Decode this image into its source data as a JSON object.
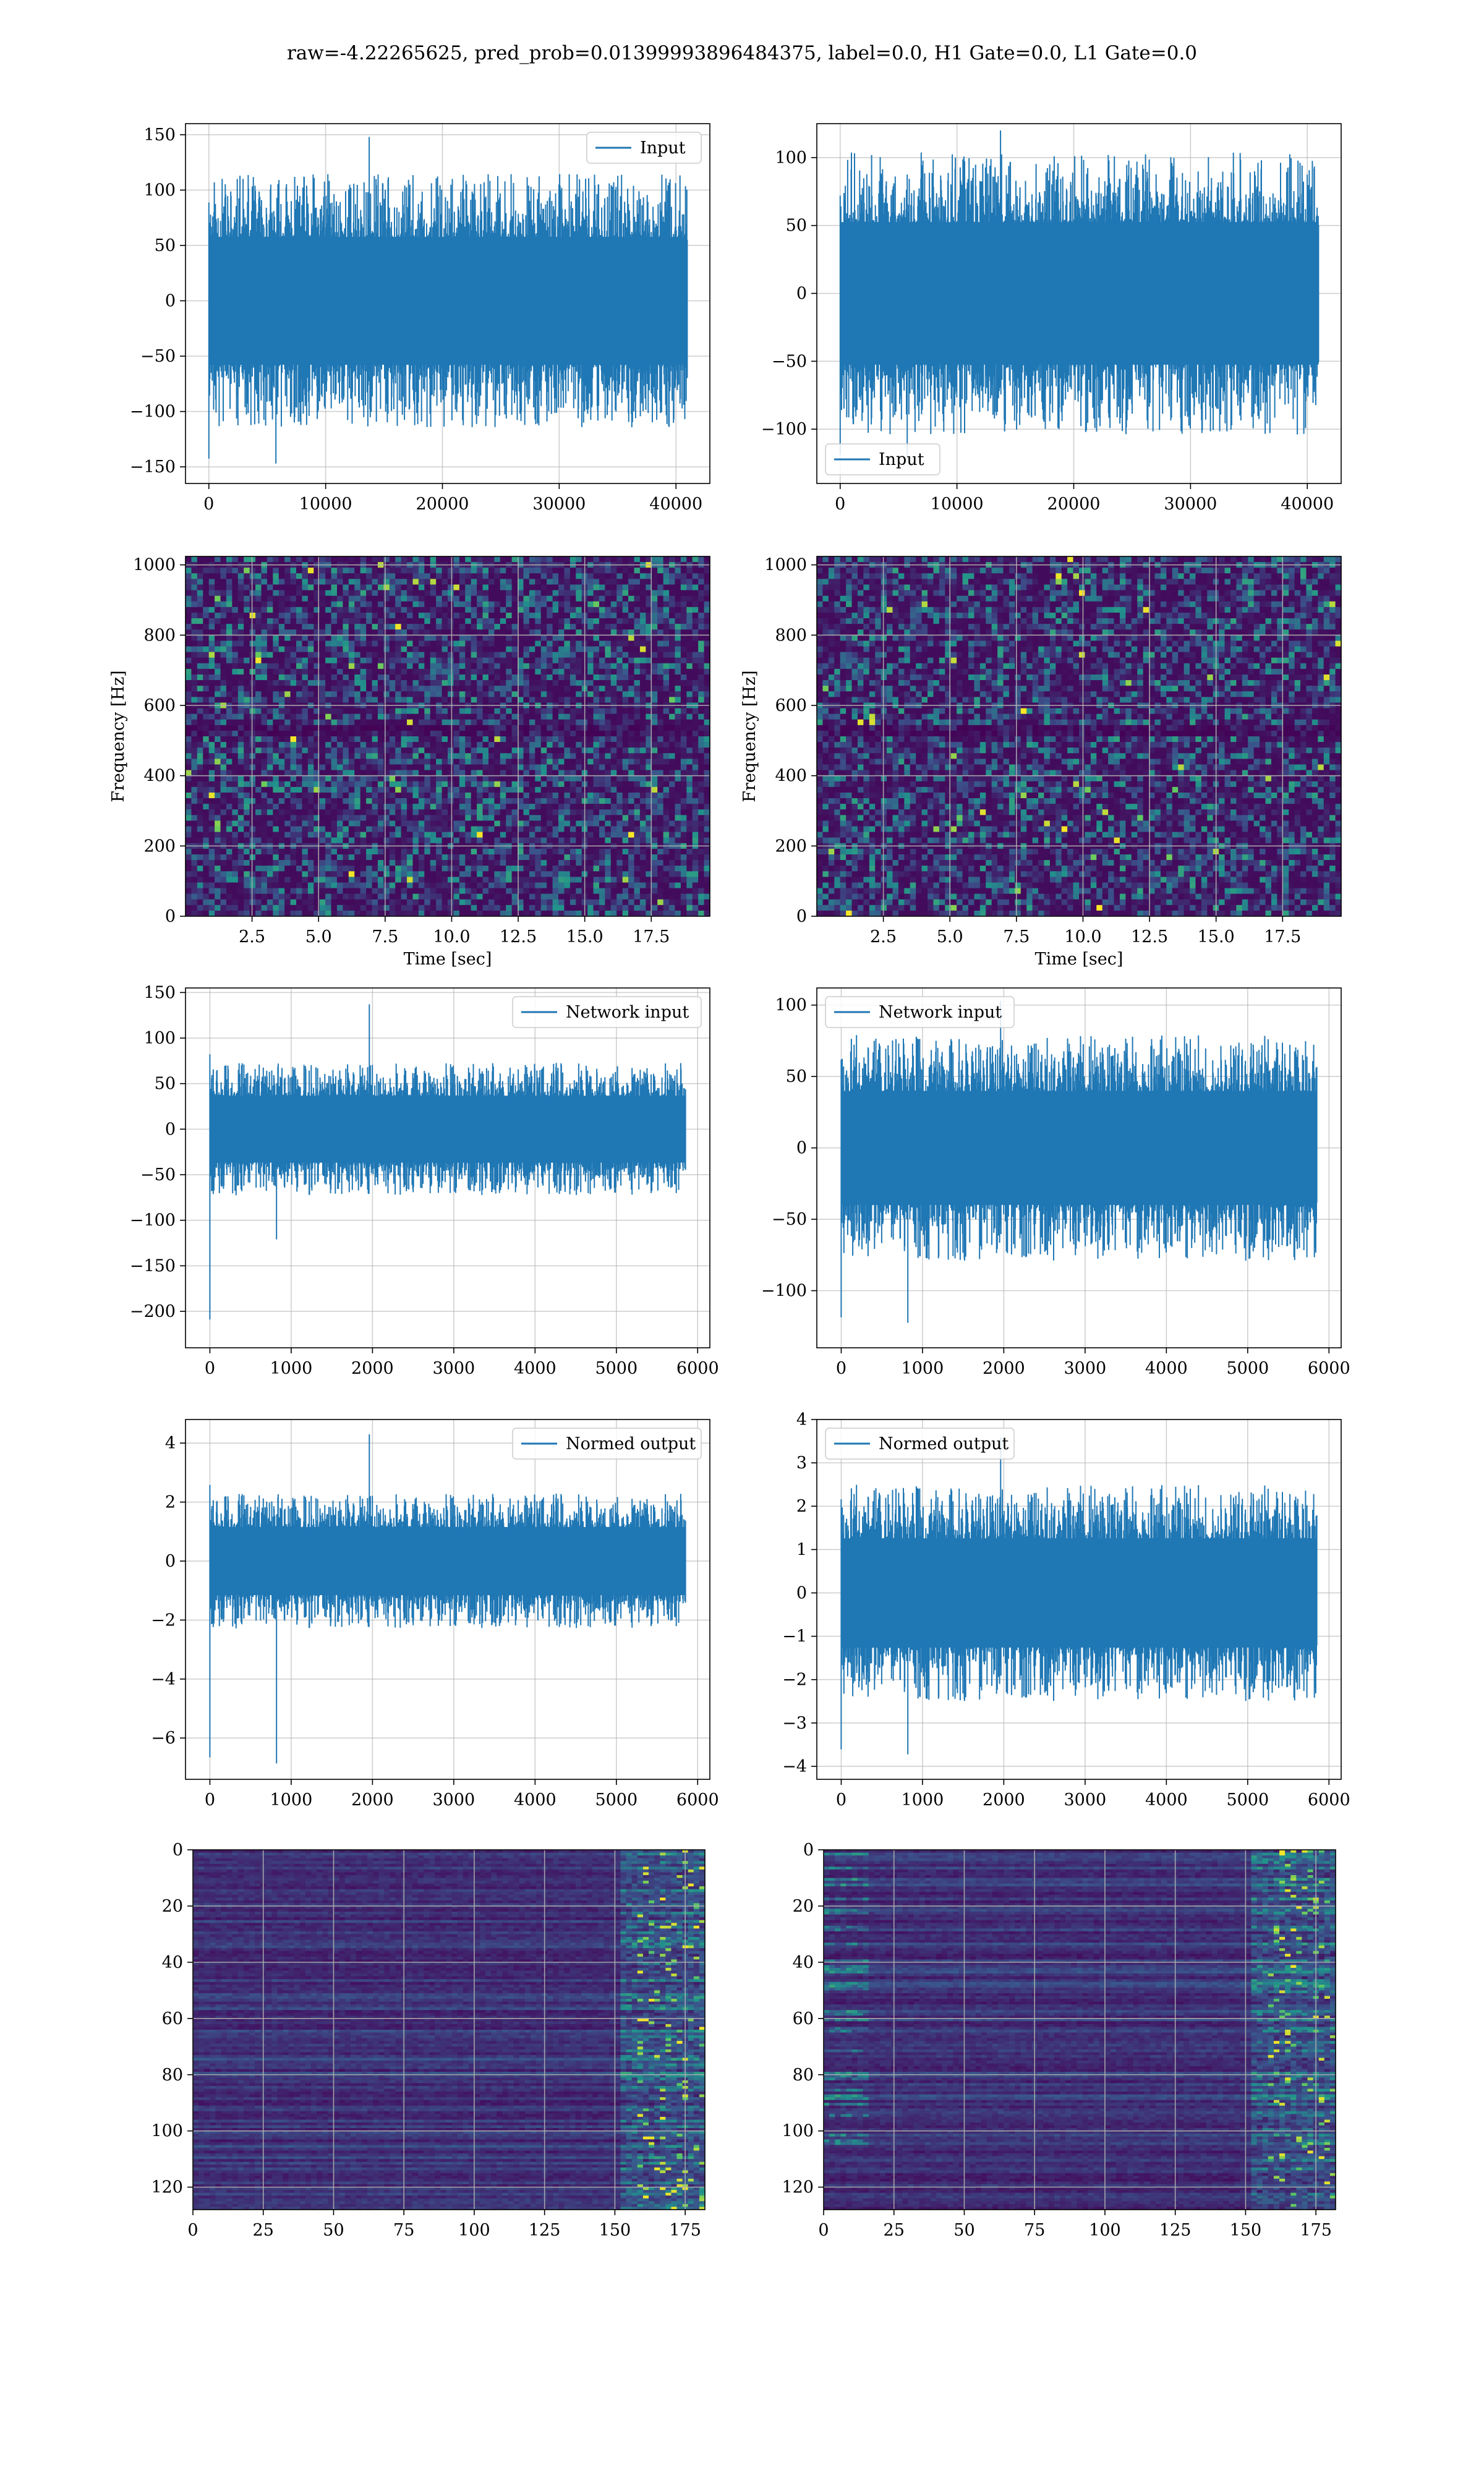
{
  "suptitle": "raw=-4.22265625, pred_prob=0.01399993896484375, label=0.0, H1 Gate=0.0, L1 Gate=0.0",
  "colors": {
    "line": "#1f77b4",
    "grid": "#b0b0b0",
    "viridis": [
      "#440154",
      "#3b528b",
      "#21918c",
      "#5ec962",
      "#fde725"
    ]
  },
  "chart_data": [
    {
      "type": "line",
      "name": "h1-input",
      "legend": "Input",
      "legend_loc": "top-right",
      "xlim": [
        -2000,
        42900
      ],
      "ylim": [
        -165,
        160
      ],
      "xticks": [
        0,
        10000,
        20000,
        30000,
        40000
      ],
      "xticklabels": [
        "0",
        "10000",
        "20000",
        "30000",
        "40000"
      ],
      "yticks": [
        -150,
        -100,
        -50,
        0,
        50,
        100,
        150
      ],
      "yticklabels": [
        "−150",
        "−100",
        "−50",
        "0",
        "50",
        "100",
        "150"
      ],
      "x_range": [
        0,
        40960
      ],
      "band": [
        -55,
        55
      ],
      "extremes": [
        -150,
        148
      ],
      "grid": true,
      "seed": 11
    },
    {
      "type": "line",
      "name": "l1-input",
      "legend": "Input",
      "legend_loc": "bottom-left",
      "xlim": [
        -2000,
        42900
      ],
      "ylim": [
        -140,
        125
      ],
      "xticks": [
        0,
        10000,
        20000,
        30000,
        40000
      ],
      "xticklabels": [
        "0",
        "10000",
        "20000",
        "30000",
        "40000"
      ],
      "yticks": [
        -100,
        -50,
        0,
        50,
        100
      ],
      "yticklabels": [
        "−100",
        "−50",
        "0",
        "50",
        "100"
      ],
      "x_range": [
        0,
        40960
      ],
      "band": [
        -50,
        50
      ],
      "extremes": [
        -125,
        120
      ],
      "grid": true,
      "seed": 23
    },
    {
      "type": "heatmap",
      "name": "h1-spectrogram",
      "xlabel": "Time [sec]",
      "ylabel": "Frequency [Hz]",
      "xlim": [
        0,
        19.7
      ],
      "ylim": [
        0,
        1024
      ],
      "xticks": [
        2.5,
        5.0,
        7.5,
        10.0,
        12.5,
        15.0,
        17.5
      ],
      "xticklabels": [
        "2.5",
        "5.0",
        "7.5",
        "10.0",
        "12.5",
        "15.0",
        "17.5"
      ],
      "yticks": [
        0,
        200,
        400,
        600,
        800,
        1000
      ],
      "yticklabels": [
        "0",
        "200",
        "400",
        "600",
        "800",
        "1000"
      ],
      "grid": true,
      "seed": 5
    },
    {
      "type": "heatmap",
      "name": "l1-spectrogram",
      "xlabel": "Time [sec]",
      "ylabel": "Frequency [Hz]",
      "xlim": [
        0,
        19.7
      ],
      "ylim": [
        0,
        1024
      ],
      "xticks": [
        2.5,
        5.0,
        7.5,
        10.0,
        12.5,
        15.0,
        17.5
      ],
      "xticklabels": [
        "2.5",
        "5.0",
        "7.5",
        "10.0",
        "12.5",
        "15.0",
        "17.5"
      ],
      "yticks": [
        0,
        200,
        400,
        600,
        800,
        1000
      ],
      "yticklabels": [
        "0",
        "200",
        "400",
        "600",
        "800",
        "1000"
      ],
      "grid": true,
      "seed": 9
    },
    {
      "type": "line",
      "name": "h1-network-input",
      "legend": "Network input",
      "legend_loc": "top-right",
      "xlim": [
        -300,
        6150
      ],
      "ylim": [
        -240,
        155
      ],
      "xticks": [
        0,
        1000,
        2000,
        3000,
        4000,
        5000,
        6000
      ],
      "xticklabels": [
        "0",
        "1000",
        "2000",
        "3000",
        "4000",
        "5000",
        "6000"
      ],
      "yticks": [
        -200,
        -150,
        -100,
        -50,
        0,
        50,
        100,
        150
      ],
      "yticklabels": [
        "−200",
        "−150",
        "−100",
        "−50",
        "0",
        "50",
        "100",
        "150"
      ],
      "x_range": [
        0,
        5850
      ],
      "band": [
        -35,
        35
      ],
      "extremes": [
        -220,
        137
      ],
      "grid": true,
      "seed": 31
    },
    {
      "type": "line",
      "name": "l1-network-input",
      "legend": "Network input",
      "legend_loc": "top-left",
      "xlim": [
        -300,
        6150
      ],
      "ylim": [
        -140,
        112
      ],
      "xticks": [
        0,
        1000,
        2000,
        3000,
        4000,
        5000,
        6000
      ],
      "xticklabels": [
        "0",
        "1000",
        "2000",
        "3000",
        "4000",
        "5000",
        "6000"
      ],
      "yticks": [
        -100,
        -50,
        0,
        50,
        100
      ],
      "yticklabels": [
        "−100",
        "−50",
        "0",
        "50",
        "100"
      ],
      "x_range": [
        0,
        5850
      ],
      "band": [
        -38,
        38
      ],
      "extremes": [
        -125,
        103
      ],
      "grid": true,
      "seed": 43
    },
    {
      "type": "line",
      "name": "h1-normed-output",
      "legend": "Normed output",
      "legend_loc": "top-right",
      "xlim": [
        -300,
        6150
      ],
      "ylim": [
        -7.4,
        4.8
      ],
      "xticks": [
        0,
        1000,
        2000,
        3000,
        4000,
        5000,
        6000
      ],
      "xticklabels": [
        "0",
        "1000",
        "2000",
        "3000",
        "4000",
        "5000",
        "6000"
      ],
      "yticks": [
        -6,
        -4,
        -2,
        0,
        2,
        4
      ],
      "yticklabels": [
        "−6",
        "−4",
        "−2",
        "0",
        "2",
        "4"
      ],
      "x_range": [
        0,
        5850
      ],
      "band": [
        -1.1,
        1.1
      ],
      "extremes": [
        -7,
        4.3
      ],
      "grid": true,
      "seed": 31
    },
    {
      "type": "line",
      "name": "l1-normed-output",
      "legend": "Normed output",
      "legend_loc": "top-left",
      "xlim": [
        -300,
        6150
      ],
      "ylim": [
        -4.3,
        4.0
      ],
      "xticks": [
        0,
        1000,
        2000,
        3000,
        4000,
        5000,
        6000
      ],
      "xticklabels": [
        "0",
        "1000",
        "2000",
        "3000",
        "4000",
        "5000",
        "6000"
      ],
      "yticks": [
        -4,
        -3,
        -2,
        -1,
        0,
        1,
        2,
        3,
        4
      ],
      "yticklabels": [
        "−4",
        "−3",
        "−2",
        "−1",
        "0",
        "1",
        "2",
        "3",
        "4"
      ],
      "x_range": [
        0,
        5850
      ],
      "band": [
        -1.2,
        1.2
      ],
      "extremes": [
        -3.8,
        3.6
      ],
      "grid": true,
      "seed": 43
    },
    {
      "type": "heatmap",
      "name": "h1-feature-map",
      "xlim": [
        0,
        182
      ],
      "ylim": [
        128,
        0
      ],
      "xticks": [
        0,
        25,
        50,
        75,
        100,
        125,
        150,
        175
      ],
      "xticklabels": [
        "0",
        "25",
        "50",
        "75",
        "100",
        "125",
        "150",
        "175"
      ],
      "yticks": [
        0,
        20,
        40,
        60,
        80,
        100,
        120
      ],
      "yticklabels": [
        "0",
        "20",
        "40",
        "60",
        "80",
        "100",
        "120"
      ],
      "grid": true,
      "seed": 17
    },
    {
      "type": "heatmap",
      "name": "l1-feature-map",
      "xlim": [
        0,
        182
      ],
      "ylim": [
        128,
        0
      ],
      "xticks": [
        0,
        25,
        50,
        75,
        100,
        125,
        150,
        175
      ],
      "xticklabels": [
        "0",
        "25",
        "50",
        "75",
        "100",
        "125",
        "150",
        "175"
      ],
      "yticks": [
        0,
        20,
        40,
        60,
        80,
        100,
        120
      ],
      "yticklabels": [
        "0",
        "20",
        "40",
        "60",
        "80",
        "100",
        "120"
      ],
      "grid": true,
      "seed": 29
    }
  ]
}
